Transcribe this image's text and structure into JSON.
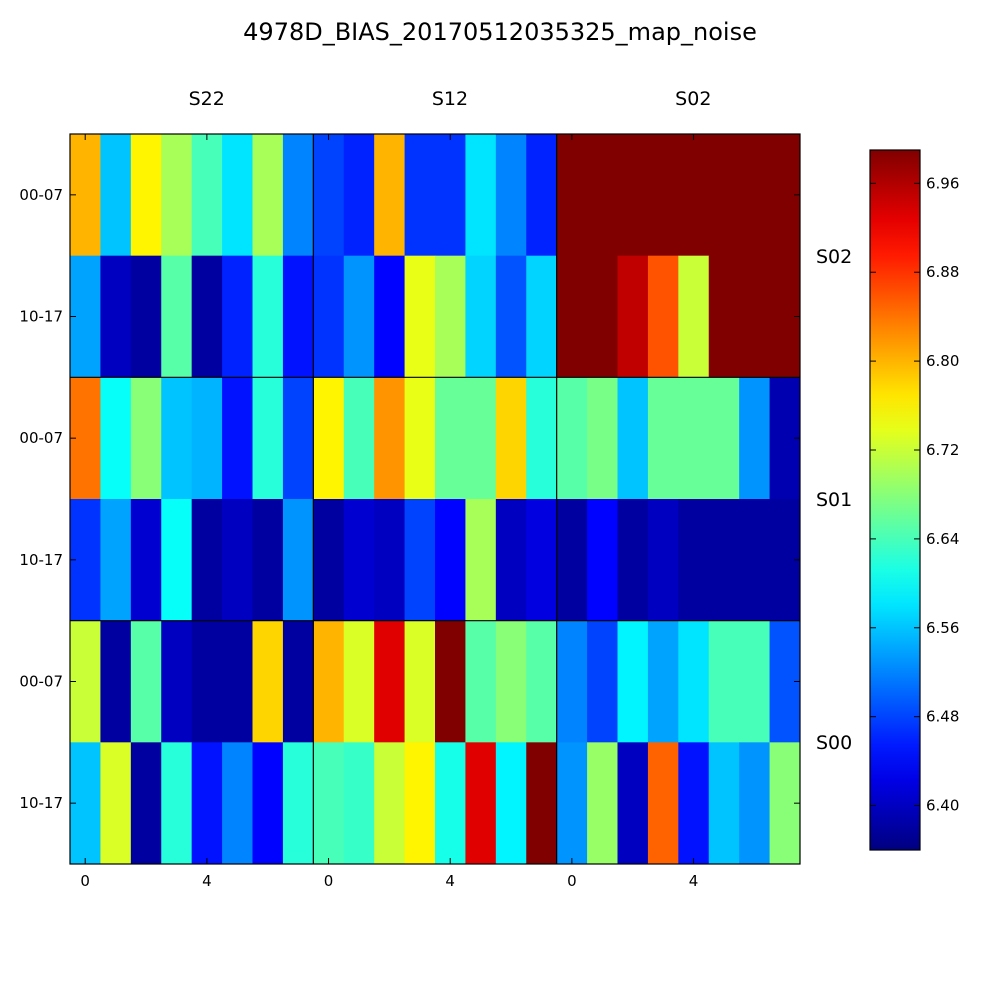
{
  "chart_data": {
    "type": "heatmap",
    "title": "4978D_BIAS_20170512035325_map_noise",
    "column_panels": [
      "S22",
      "S12",
      "S02"
    ],
    "row_panels": [
      "S02",
      "S01",
      "S00"
    ],
    "row_tick_labels": [
      "00-07",
      "10-17"
    ],
    "column_tick_labels": [
      "0",
      "4"
    ],
    "colorbar": {
      "min": 6.36,
      "max": 6.99,
      "ticks": [
        "6.40",
        "6.48",
        "6.56",
        "6.64",
        "6.72",
        "6.80",
        "6.88",
        "6.96"
      ],
      "colormap": "jet"
    },
    "values": [
      [
        6.8,
        6.56,
        6.76,
        6.7,
        6.64,
        6.58,
        6.7,
        6.52,
        6.48,
        6.46,
        6.8,
        6.47,
        6.47,
        6.58,
        6.52,
        6.46,
        6.99,
        6.99,
        6.99,
        6.99,
        6.99,
        6.99,
        6.99,
        6.99
      ],
      [
        6.54,
        6.4,
        6.38,
        6.65,
        6.38,
        6.46,
        6.62,
        6.45,
        6.47,
        6.53,
        6.44,
        6.74,
        6.7,
        6.57,
        6.49,
        6.57,
        6.99,
        6.99,
        6.95,
        6.86,
        6.72,
        6.99,
        6.99,
        6.99
      ],
      [
        6.84,
        6.6,
        6.68,
        6.56,
        6.55,
        6.45,
        6.62,
        6.48,
        6.76,
        6.64,
        6.82,
        6.74,
        6.66,
        6.66,
        6.78,
        6.62,
        6.65,
        6.67,
        6.56,
        6.66,
        6.66,
        6.66,
        6.53,
        6.39
      ],
      [
        6.47,
        6.54,
        6.41,
        6.6,
        6.38,
        6.4,
        6.38,
        6.53,
        6.38,
        6.41,
        6.4,
        6.48,
        6.44,
        6.7,
        6.4,
        6.42,
        6.38,
        6.44,
        6.38,
        6.4,
        6.38,
        6.38,
        6.38,
        6.38
      ],
      [
        6.72,
        6.38,
        6.65,
        6.4,
        6.38,
        6.38,
        6.78,
        6.38,
        6.8,
        6.73,
        6.93,
        6.73,
        6.99,
        6.65,
        6.68,
        6.65,
        6.52,
        6.48,
        6.59,
        6.54,
        6.58,
        6.64,
        6.64,
        6.49
      ],
      [
        6.56,
        6.73,
        6.38,
        6.62,
        6.45,
        6.52,
        6.44,
        6.62,
        6.64,
        6.63,
        6.72,
        6.76,
        6.61,
        6.93,
        6.59,
        6.99,
        6.53,
        6.69,
        6.4,
        6.85,
        6.45,
        6.56,
        6.53,
        6.68
      ]
    ]
  }
}
